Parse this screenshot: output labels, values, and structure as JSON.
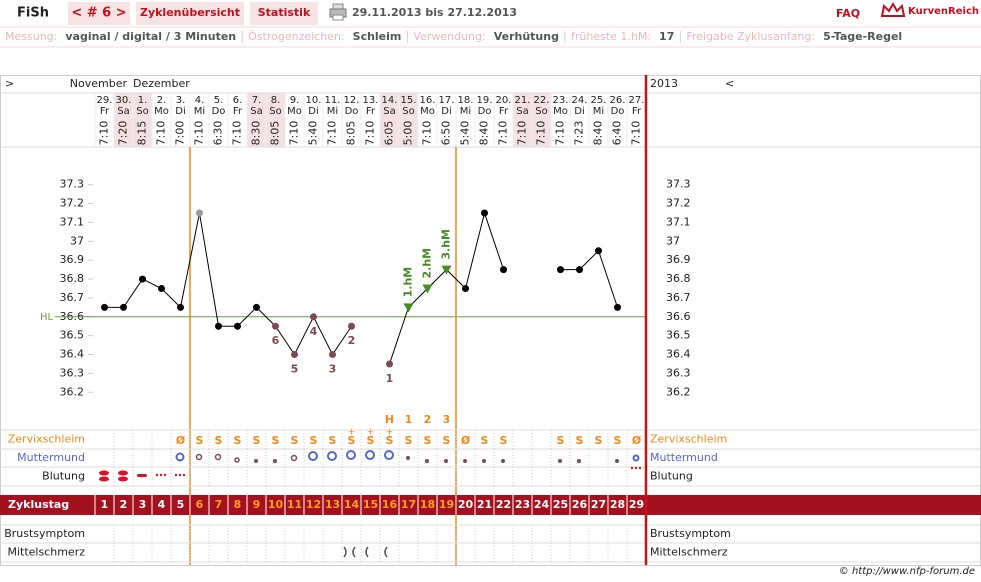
{
  "header": {
    "logo": "FiSh",
    "cycle_nav": "< # 6 >",
    "tabs": [
      "Zyklenübersicht",
      "Statistik"
    ],
    "date_range": "29.11.2013 bis 27.12.2013",
    "faq": "FAQ",
    "brand": "KurvenReich"
  },
  "info_bar": [
    {
      "label": "Messung:",
      "value": "vaginal / digital / 3 Minuten"
    },
    {
      "label": "Östrogenzeichen:",
      "value": "Schleim"
    },
    {
      "label": "Verwendung:",
      "value": "Verhütung"
    },
    {
      "label": "früheste 1.hM:",
      "value": "17"
    },
    {
      "label": "Freigabe Zyklusanfang:",
      "value": "5-Tage-Regel"
    }
  ],
  "footer": "© http://www.nfp-forum.de",
  "chart_data": {
    "type": "line",
    "nav_prev": ">",
    "nav_next": "<",
    "months": [
      "November",
      "Dezember"
    ],
    "year": "2013",
    "categories": [
      "29.",
      "30.",
      "1.",
      "2.",
      "3.",
      "4.",
      "5.",
      "6.",
      "7.",
      "8.",
      "9.",
      "10.",
      "11.",
      "12.",
      "13.",
      "14.",
      "15.",
      "16.",
      "17.",
      "18.",
      "19.",
      "20.",
      "21.",
      "22.",
      "23.",
      "24.",
      "25.",
      "26.",
      "27."
    ],
    "weekdays": [
      "Fr",
      "Sa",
      "So",
      "Mo",
      "Di",
      "Mi",
      "Do",
      "Fr",
      "Sa",
      "So",
      "Mo",
      "Di",
      "Mi",
      "Do",
      "Fr",
      "Sa",
      "So",
      "Mo",
      "Di",
      "Mi",
      "Do",
      "Fr",
      "Sa",
      "So",
      "Mo",
      "Di",
      "Mi",
      "Do",
      "Fr"
    ],
    "weekend_days": [
      "Sa",
      "So"
    ],
    "times": [
      "7:10",
      "7:20",
      "8:15",
      "7:10",
      "7:00",
      "7:10",
      "6:30",
      "7:10",
      "8:30",
      "8:05",
      "7:10",
      "5:40",
      "7:10",
      "8:05",
      "7:10",
      "6:05",
      "5:00",
      "7:10",
      "6:50",
      "5:40",
      "8:40",
      "7:10",
      "7:10",
      "7:10",
      "7:10",
      "7:23",
      "8:40",
      "6:40",
      "7:10"
    ],
    "values": [
      36.65,
      36.65,
      36.8,
      36.75,
      36.65,
      37.15,
      36.55,
      36.55,
      36.65,
      36.55,
      36.4,
      36.6,
      36.4,
      36.55,
      null,
      36.35,
      36.65,
      36.75,
      36.85,
      36.75,
      37.15,
      36.85,
      null,
      null,
      36.85,
      36.85,
      36.95,
      36.65,
      null
    ],
    "color": "#000000",
    "marker_colors": [
      "#000",
      "#000",
      "#000",
      "#000",
      "#000",
      "#999",
      "#000",
      "#000",
      "#000",
      "#7b4b55",
      "#7b4b55",
      "#7b4b55",
      "#7b4b55",
      "#7b4b55",
      null,
      "#7b4b55",
      "#4a8a2a",
      "#4a8a2a",
      "#4a8a2a",
      "#000",
      "#000",
      "#000",
      null,
      null,
      "#000",
      "#000",
      "#000",
      "#000",
      null
    ],
    "low_labels": [
      null,
      null,
      null,
      null,
      null,
      null,
      null,
      null,
      null,
      "6",
      "5",
      "4",
      "3",
      "2",
      null,
      "1",
      null,
      null,
      null,
      null,
      null,
      null,
      null,
      null,
      null,
      null,
      null,
      null,
      null
    ],
    "hm_labels": [
      null,
      null,
      null,
      null,
      null,
      null,
      null,
      null,
      null,
      null,
      null,
      null,
      null,
      null,
      null,
      null,
      "1.hM",
      "2.hM",
      "3.hM",
      null,
      null,
      null,
      null,
      null,
      null,
      null,
      null,
      null,
      null
    ],
    "ylim": [
      36.0,
      37.5
    ],
    "yticks": [
      36.2,
      36.3,
      36.4,
      36.5,
      36.6,
      36.7,
      36.8,
      36.9,
      37,
      37.1,
      37.2,
      37.3
    ],
    "hl": 36.6,
    "hl_label": "HL",
    "peak_labels": [
      null,
      null,
      null,
      null,
      null,
      null,
      null,
      null,
      null,
      null,
      null,
      null,
      null,
      null,
      null,
      "H",
      "1",
      "2",
      "3",
      null,
      null,
      null,
      null,
      null,
      null,
      null,
      null,
      null,
      null
    ],
    "cervix": [
      null,
      null,
      null,
      null,
      "Ø",
      "S",
      "S",
      "S",
      "S",
      "S",
      "S",
      "S",
      "S",
      "S",
      "S",
      "S",
      "S",
      "S",
      "S",
      "Ø",
      "S",
      "S",
      null,
      null,
      "S",
      "S",
      "S",
      "S",
      "Ø"
    ],
    "cervix_plus": [
      null,
      null,
      null,
      null,
      null,
      null,
      null,
      null,
      null,
      null,
      null,
      null,
      null,
      "+",
      "+",
      "+",
      null,
      null,
      null,
      null,
      null,
      null,
      null,
      null,
      null,
      null,
      null,
      null,
      null
    ],
    "cycle_days": [
      1,
      2,
      3,
      4,
      5,
      6,
      7,
      8,
      9,
      10,
      11,
      12,
      13,
      14,
      15,
      16,
      17,
      18,
      19,
      20,
      21,
      22,
      23,
      24,
      25,
      26,
      27,
      28,
      29
    ],
    "fertile_window": {
      "start": 6,
      "end": 19
    },
    "row_labels": {
      "cervix": "Zervixschleim",
      "cervix_os": "Muttermund",
      "bleeding": "Blutung",
      "cycle_day": "Zyklustag",
      "breast": "Brustsymptom",
      "midpain": "Mittelschmerz"
    }
  }
}
